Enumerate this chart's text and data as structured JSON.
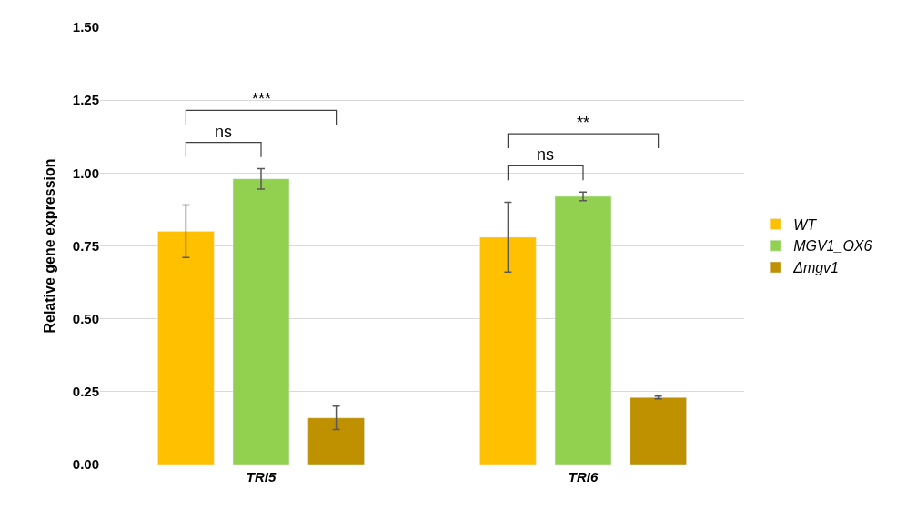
{
  "chart_data": {
    "type": "bar",
    "ylabel": "Relative gene expression",
    "categories": [
      "TRI5",
      "TRI6"
    ],
    "series": [
      {
        "name": "WT",
        "color": "#ffc000",
        "values": [
          0.8,
          0.78
        ],
        "errors": [
          0.09,
          0.12
        ]
      },
      {
        "name": "MGV1_OX6",
        "color": "#92d050",
        "values": [
          0.98,
          0.92
        ],
        "errors": [
          0.035,
          0.015
        ]
      },
      {
        "name": "Δmgv1",
        "color": "#bf9000",
        "values": [
          0.16,
          0.23
        ],
        "errors": [
          0.04,
          0.005
        ]
      }
    ],
    "ylim": [
      0,
      1.5
    ],
    "yticks": [
      {
        "value": 0,
        "label": "0.00"
      },
      {
        "value": 0.25,
        "label": "0.25"
      },
      {
        "value": 0.5,
        "label": "0.50"
      },
      {
        "value": 0.75,
        "label": "0.75"
      },
      {
        "value": 1,
        "label": "1.00"
      },
      {
        "value": 1.25,
        "label": "1.25"
      },
      {
        "value": 1.5,
        "label": "1.50"
      }
    ],
    "grid": "y",
    "legend": "right",
    "annotations": [
      "ns",
      "***",
      "ns",
      "**"
    ]
  }
}
